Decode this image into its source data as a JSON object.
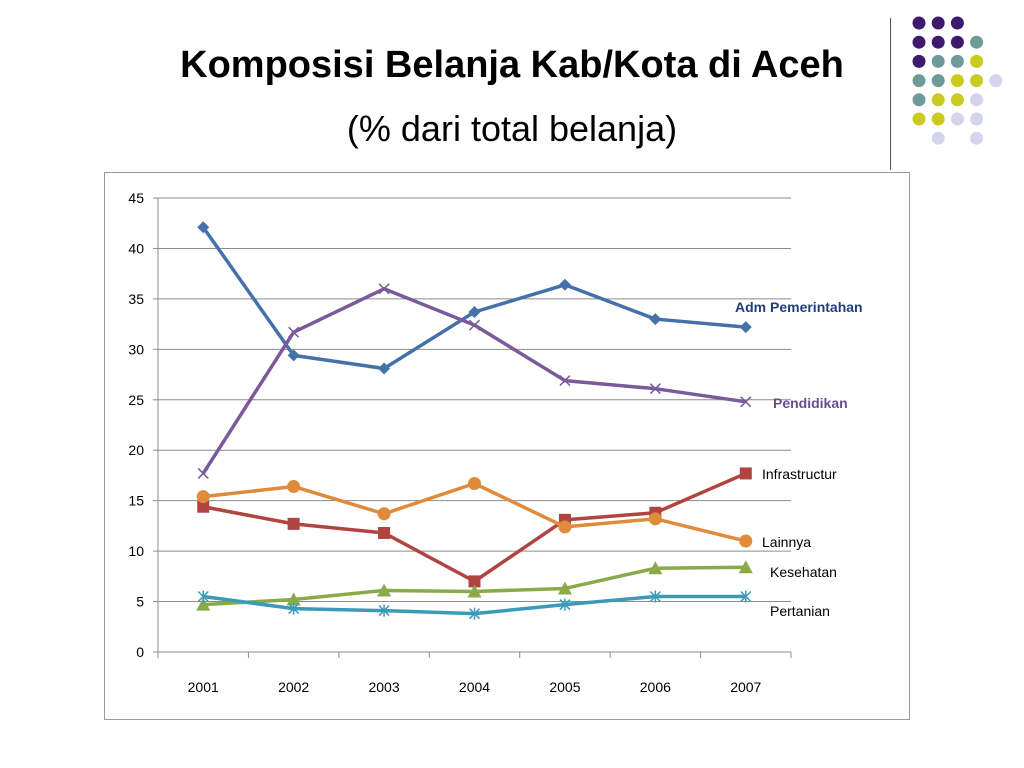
{
  "slide": {
    "title": "Komposisi Belanja Kab/Kota di Aceh",
    "subtitle": "(% dari total belanja)"
  },
  "decoration": {
    "dot_colors": {
      "purple": "#3d1a6e",
      "teal": "#6f9a9a",
      "yellow": "#c9cc1e",
      "lavender": "#d4d4ea"
    }
  },
  "chart_data": {
    "type": "line",
    "title": "",
    "xlabel": "",
    "ylabel": "",
    "categories": [
      "2001",
      "2002",
      "2003",
      "2004",
      "2005",
      "2006",
      "2007"
    ],
    "ylim": [
      0,
      45
    ],
    "yticks": [
      0,
      5,
      10,
      15,
      20,
      25,
      30,
      35,
      40,
      45
    ],
    "grid": true,
    "legend": "none",
    "series": [
      {
        "name": "Adm Pemerintahan",
        "values": [
          42.1,
          29.4,
          28.1,
          33.7,
          36.4,
          33.0,
          32.2
        ],
        "color": "#4472a8",
        "label_color": "#1f3e7a",
        "marker": "diamond"
      },
      {
        "name": "Pendidikan",
        "values": [
          17.7,
          31.7,
          36.0,
          32.4,
          26.9,
          26.1,
          24.8
        ],
        "color": "#7a5a9a",
        "label_color": "#6a4f8e",
        "marker": "x"
      },
      {
        "name": "Infrastructur",
        "values": [
          14.4,
          12.7,
          11.8,
          7.0,
          13.1,
          13.8,
          17.7
        ],
        "color": "#b04440",
        "label_color": "#000000",
        "marker": "square"
      },
      {
        "name": "Lainnya",
        "values": [
          15.4,
          16.4,
          13.7,
          16.7,
          12.4,
          13.2,
          11.0
        ],
        "color": "#e08a3c",
        "label_color": "#000000",
        "marker": "circle"
      },
      {
        "name": "Kesehatan",
        "values": [
          4.7,
          5.2,
          6.1,
          6.0,
          6.3,
          8.3,
          8.4
        ],
        "color": "#8aaa4a",
        "label_color": "#000000",
        "marker": "triangle"
      },
      {
        "name": "Pertanian",
        "values": [
          5.5,
          4.3,
          4.1,
          3.8,
          4.7,
          5.5,
          5.5
        ],
        "color": "#3a9ab8",
        "label_color": "#000000",
        "marker": "asterisk"
      }
    ]
  }
}
